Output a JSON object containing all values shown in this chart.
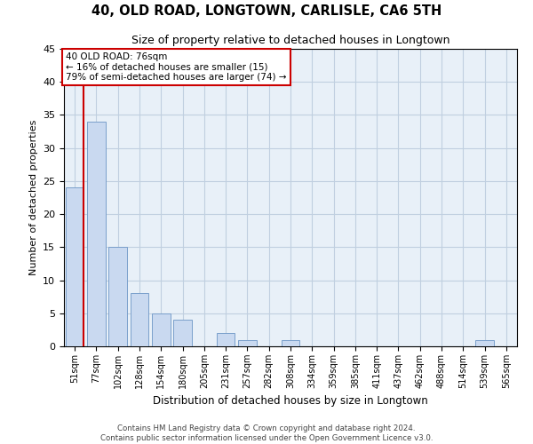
{
  "title": "40, OLD ROAD, LONGTOWN, CARLISLE, CA6 5TH",
  "subtitle": "Size of property relative to detached houses in Longtown",
  "xlabel": "Distribution of detached houses by size in Longtown",
  "ylabel": "Number of detached properties",
  "categories": [
    "51sqm",
    "77sqm",
    "102sqm",
    "128sqm",
    "154sqm",
    "180sqm",
    "205sqm",
    "231sqm",
    "257sqm",
    "282sqm",
    "308sqm",
    "334sqm",
    "359sqm",
    "385sqm",
    "411sqm",
    "437sqm",
    "462sqm",
    "488sqm",
    "514sqm",
    "539sqm",
    "565sqm"
  ],
  "values": [
    24,
    34,
    15,
    8,
    5,
    4,
    0,
    2,
    1,
    0,
    1,
    0,
    0,
    0,
    0,
    0,
    0,
    0,
    0,
    1,
    0
  ],
  "bar_color": "#c9d9f0",
  "bar_edge_color": "#7a9fcb",
  "grid_color": "#c0cfe0",
  "background_color": "#e8f0f8",
  "ylim": [
    0,
    45
  ],
  "yticks": [
    0,
    5,
    10,
    15,
    20,
    25,
    30,
    35,
    40,
    45
  ],
  "annotation_text": "40 OLD ROAD: 76sqm\n← 16% of detached houses are smaller (15)\n79% of semi-detached houses are larger (74) →",
  "annotation_box_color": "#ffffff",
  "annotation_box_edge_color": "#cc0000",
  "property_line_color": "#cc0000",
  "footer_line1": "Contains HM Land Registry data © Crown copyright and database right 2024.",
  "footer_line2": "Contains public sector information licensed under the Open Government Licence v3.0."
}
